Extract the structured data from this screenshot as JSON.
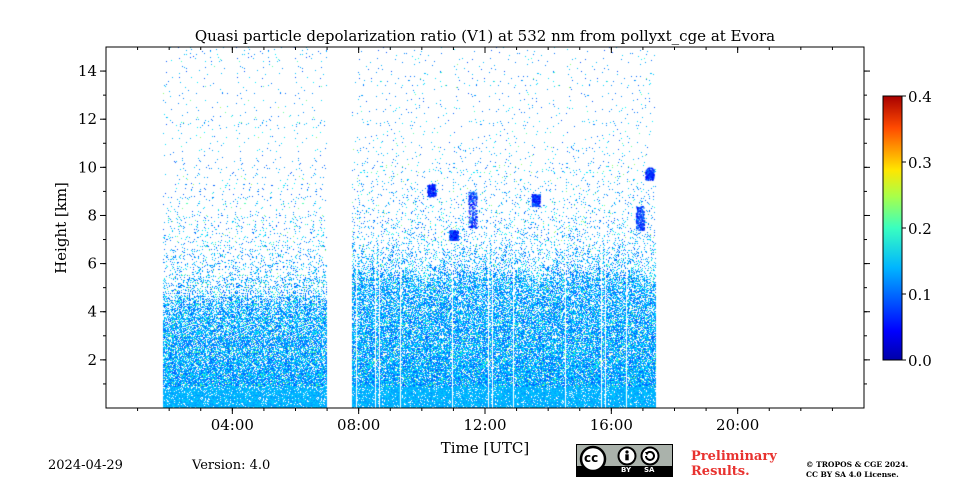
{
  "chart_data": {
    "type": "heatmap",
    "title": "Quasi particle depolarization ratio (V1) at 532 nm from pollyxt_cge at Evora",
    "xlabel": "Time [UTC]",
    "ylabel": "Height [km]",
    "xlim_hours": [
      0,
      24
    ],
    "ylim_km": [
      0,
      15
    ],
    "x_ticks": [
      {
        "hour": 4,
        "label": "04:00"
      },
      {
        "hour": 8,
        "label": "08:00"
      },
      {
        "hour": 12,
        "label": "12:00"
      },
      {
        "hour": 16,
        "label": "16:00"
      },
      {
        "hour": 20,
        "label": "20:00"
      }
    ],
    "y_ticks": [
      {
        "value": 2,
        "label": "2"
      },
      {
        "value": 4,
        "label": "4"
      },
      {
        "value": 6,
        "label": "6"
      },
      {
        "value": 8,
        "label": "8"
      },
      {
        "value": 10,
        "label": "10"
      },
      {
        "value": 12,
        "label": "12"
      },
      {
        "value": 14,
        "label": "14"
      }
    ],
    "colorbar": {
      "min": 0.0,
      "max": 0.4,
      "ticks": [
        {
          "value": 0.0,
          "label": "0.0"
        },
        {
          "value": 0.1,
          "label": "0.1"
        },
        {
          "value": 0.2,
          "label": "0.2"
        },
        {
          "value": 0.3,
          "label": "0.3"
        },
        {
          "value": 0.4,
          "label": "0.4"
        }
      ],
      "colormap": "jet"
    },
    "data_segments": [
      {
        "start_hour": 1.8,
        "end_hour": 7.0,
        "dense_top_km": 4.5
      },
      {
        "start_hour": 7.8,
        "end_hour": 17.4,
        "dense_top_km": 5.5
      }
    ],
    "gaps_hours": [
      [
        7.0,
        7.8
      ]
    ],
    "clouds": [
      {
        "hour": 11.6,
        "base_km": 7.5,
        "top_km": 9.0
      },
      {
        "hour": 10.3,
        "base_km": 8.8,
        "top_km": 9.3
      },
      {
        "hour": 13.6,
        "base_km": 8.4,
        "top_km": 8.9
      },
      {
        "hour": 17.2,
        "base_km": 9.5,
        "top_km": 10.0
      },
      {
        "hour": 16.9,
        "base_km": 7.4,
        "top_km": 8.4
      },
      {
        "hour": 11.0,
        "base_km": 7.0,
        "top_km": 7.4
      }
    ]
  },
  "footer": {
    "date": "2024-04-29",
    "version": "Version: 4.0",
    "preliminary_line1": "Preliminary",
    "preliminary_line2": "Results.",
    "license_line1": "© TROPOS & CGE 2024.",
    "license_line2": "CC BY SA 4.0 License.",
    "cc_label": "cc",
    "by_label": "BY",
    "sa_label": "SA"
  }
}
